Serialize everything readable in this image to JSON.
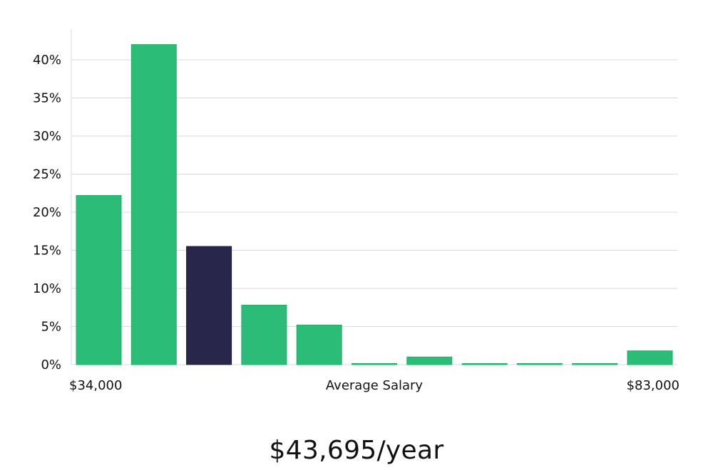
{
  "chart_data": {
    "type": "bar",
    "categories": [
      "$34,000",
      "",
      "",
      "",
      "",
      "",
      "",
      "",
      "",
      "",
      "$83,000"
    ],
    "values": [
      22.2,
      42.0,
      15.5,
      7.8,
      5.2,
      0.1,
      1.0,
      0.1,
      0.1,
      0.1,
      1.8
    ],
    "highlight_index": 2,
    "xlabel": "Average Salary",
    "x_start_label": "$34,000",
    "x_end_label": "$83,000",
    "ylabel": "",
    "ylim": [
      0,
      45
    ],
    "yticks": [
      0,
      5,
      10,
      15,
      20,
      25,
      30,
      35,
      40
    ],
    "ytick_labels": [
      "0%",
      "5%",
      "10%",
      "15%",
      "20%",
      "25%",
      "30%",
      "35%",
      "40%"
    ],
    "grid": true,
    "colors": {
      "bar": "#2bbd77",
      "highlight": "#28264a",
      "grid": "#d9d9d9",
      "axis": "#dddddd"
    }
  },
  "salary_label": "$43,695/year"
}
